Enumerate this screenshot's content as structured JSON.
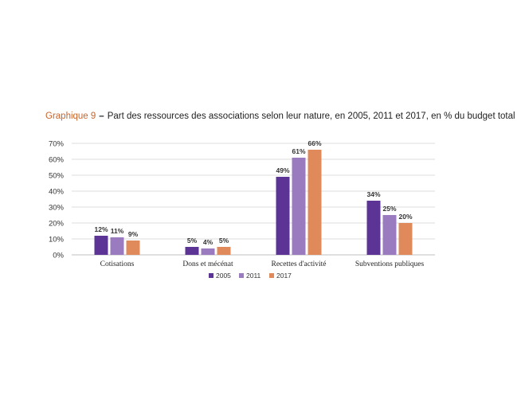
{
  "chart_data": {
    "type": "bar",
    "title_prefix": "Graphique 9",
    "title_separator": "–",
    "title": "Part des ressources des associations selon leur nature, en 2005, 2011 et 2017, en % du budget total",
    "categories": [
      "Cotisations",
      "Dons et mécénat",
      "Recettes d'activité",
      "Subventions publiques"
    ],
    "series": [
      {
        "name": "2005",
        "color": "#5b3495",
        "values": [
          12,
          5,
          49,
          34
        ]
      },
      {
        "name": "2011",
        "color": "#9b7bc0",
        "values": [
          11,
          4,
          61,
          25
        ]
      },
      {
        "name": "2017",
        "color": "#e08a5b",
        "values": [
          9,
          5,
          66,
          20
        ]
      }
    ],
    "data_labels": [
      [
        "12%",
        "5%",
        "49%",
        "34%"
      ],
      [
        "11%",
        "4%",
        "61%",
        "25%"
      ],
      [
        "9%",
        "5%",
        "66%",
        "20%"
      ]
    ],
    "yticks": [
      "0%",
      "10%",
      "20%",
      "30%",
      "40%",
      "50%",
      "60%",
      "70%"
    ],
    "ylim": [
      0,
      70
    ],
    "grid": true,
    "legend_position": "bottom"
  }
}
